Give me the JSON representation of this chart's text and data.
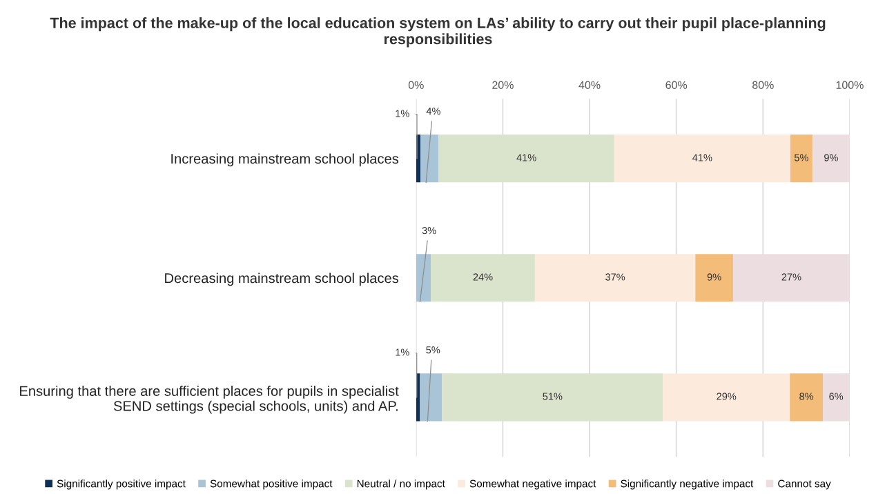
{
  "chart_data": {
    "type": "bar",
    "orientation": "horizontal",
    "stacked": true,
    "title": "The impact of the make-up of the local education system on LAs’ ability to carry out their pupil place-planning responsibilities",
    "categories": [
      "Increasing mainstream school places",
      "Decreasing mainstream school places",
      "Ensuring that there are sufficient places for pupils in specialist SEND settings (special schools, units) and AP."
    ],
    "series": [
      {
        "name": "Significantly positive impact",
        "color": "#0e2f56",
        "values": [
          1.0,
          0,
          0.9
        ],
        "value_labels": [
          "1%",
          null,
          "1%"
        ]
      },
      {
        "name": "Somewhat positive impact",
        "color": "#a8c4d6",
        "values": [
          4.2,
          3.4,
          5.1
        ],
        "value_labels": [
          "4%",
          "3%",
          "5%"
        ]
      },
      {
        "name": "Neutral / no impact",
        "color": "#dae3cc",
        "values": [
          40.5,
          24.0,
          50.9
        ],
        "value_labels": [
          "41%",
          "24%",
          "51%"
        ]
      },
      {
        "name": "Somewhat negative impact",
        "color": "#fcebdc",
        "values": [
          40.6,
          37.0,
          29.3
        ],
        "value_labels": [
          "41%",
          "37%",
          "29%"
        ]
      },
      {
        "name": "Significantly negative impact",
        "color": "#f4bc79",
        "values": [
          5.1,
          8.7,
          7.6
        ],
        "value_labels": [
          "5%",
          "9%",
          "8%"
        ]
      },
      {
        "name": "Cannot say",
        "color": "#ecdde0",
        "values": [
          8.6,
          26.9,
          6.1
        ],
        "value_labels": [
          "9%",
          "27%",
          "6%"
        ]
      }
    ],
    "xlim": [
      0,
      100
    ],
    "xticks": [
      {
        "value": 0,
        "label": "0%"
      },
      {
        "value": 20,
        "label": "20%"
      },
      {
        "value": 40,
        "label": "40%"
      },
      {
        "value": 60,
        "label": "60%"
      },
      {
        "value": 80,
        "label": "80%"
      },
      {
        "value": 100,
        "label": "100%"
      }
    ],
    "grid": "x",
    "legend": "bottom"
  }
}
